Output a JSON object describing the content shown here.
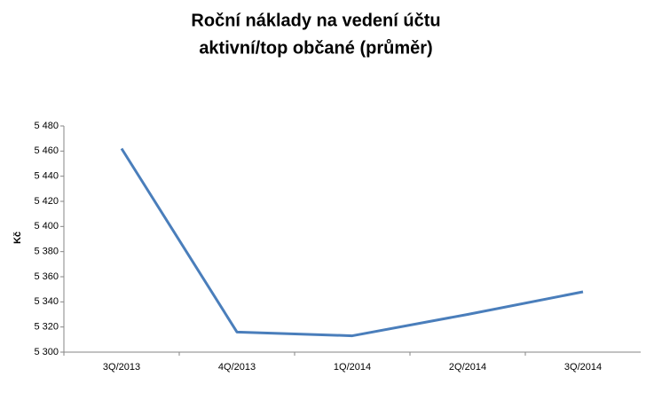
{
  "chart_data": {
    "type": "line",
    "title": [
      "Roční náklady na vedení účtu",
      "aktivní/top občané (průměr)"
    ],
    "y_label": "Kč",
    "categories": [
      "3Q/2013",
      "4Q/2013",
      "1Q/2014",
      "2Q/2014",
      "3Q/2014"
    ],
    "series": [
      {
        "name": "aktivní/top občané",
        "color": "#4a7ebb",
        "values": [
          5462,
          5316,
          5313,
          5330,
          5348
        ]
      }
    ],
    "ylim": [
      5300,
      5480
    ],
    "yticks": [
      {
        "value": 5300,
        "label": "5 300"
      },
      {
        "value": 5320,
        "label": "5 320"
      },
      {
        "value": 5340,
        "label": "5 340"
      },
      {
        "value": 5360,
        "label": "5 360"
      },
      {
        "value": 5380,
        "label": "5 380"
      },
      {
        "value": 5400,
        "label": "5 400"
      },
      {
        "value": 5420,
        "label": "5 420"
      },
      {
        "value": 5440,
        "label": "5 440"
      },
      {
        "value": 5460,
        "label": "5 460"
      },
      {
        "value": 5480,
        "label": "5 480"
      }
    ],
    "grid": false,
    "legend": false
  }
}
